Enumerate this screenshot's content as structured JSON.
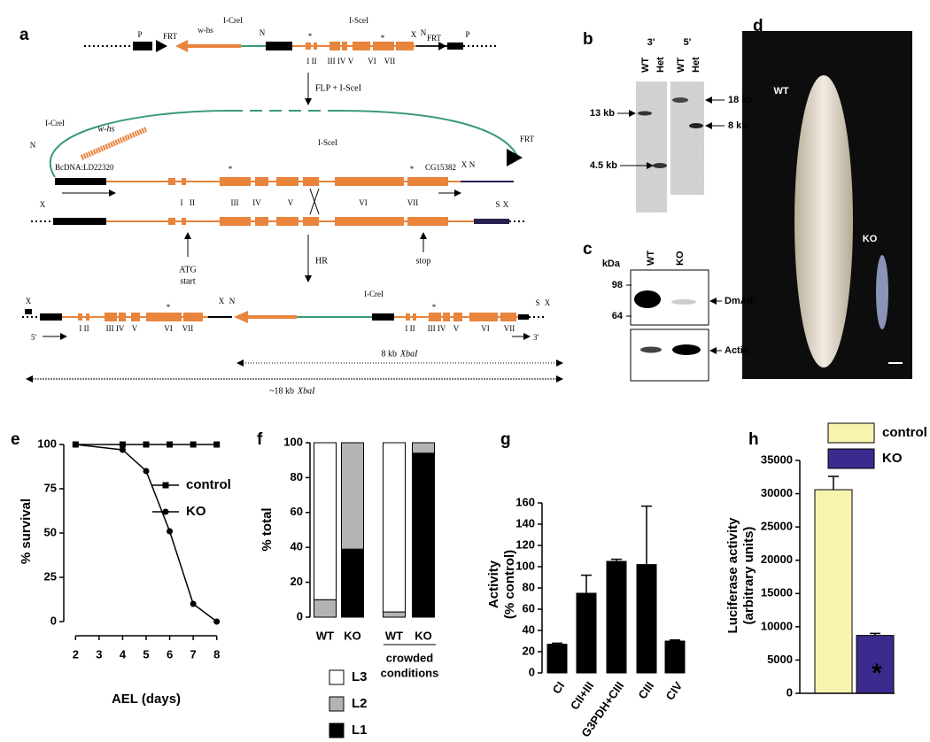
{
  "panel_labels": [
    "a",
    "b",
    "c",
    "d",
    "e",
    "f",
    "g",
    "h"
  ],
  "diagram": {
    "labels": [
      "P",
      "FRT",
      "w-hs",
      "I-CreI",
      "N",
      "I-SceI",
      "*",
      "*",
      "I II",
      "III IV",
      "V",
      "VI",
      "VII",
      "X",
      "N",
      "FRT",
      "P",
      "FLP + I-SceI",
      "I-CreI",
      "w-hs",
      "N",
      "FRT",
      "BcDNA:LD22320",
      "*",
      "I-SceI",
      "*",
      "CG15382",
      "X",
      "N",
      "I",
      "II",
      "III",
      "IV",
      "V",
      "VI",
      "VII",
      "X",
      "S",
      "X",
      "ATG",
      "start",
      "HR",
      "stop",
      "X",
      "5'",
      "I II",
      "III IV",
      "V",
      "VI",
      "VII",
      "*",
      "X",
      "N",
      "I-CreI",
      "I II",
      "III IV",
      "V",
      "VI",
      "VII",
      "*",
      "S",
      "X",
      "3'",
      "8 kb",
      "XbaI",
      "~18 kb",
      "XbaI"
    ]
  },
  "blot_b": {
    "labels": [
      "3'",
      "5'",
      "WT",
      "Het",
      "WT",
      "Het",
      "13 kb",
      "4.5 kb",
      "18 kb",
      "8 kb"
    ]
  },
  "blot_c": {
    "labels": [
      "kDa",
      "WT",
      "KO",
      "98",
      "64",
      "DmAIF",
      "Actin"
    ]
  },
  "photo_d": {
    "labels": [
      "WT",
      "KO"
    ]
  },
  "chart_data": [
    {
      "type": "line",
      "x": [
        2,
        4,
        5,
        6,
        7,
        8
      ],
      "xlim": [
        1.8,
        8.2
      ],
      "xticks": [
        2,
        3,
        4,
        5,
        6,
        7,
        8
      ],
      "ylim": [
        -5,
        105
      ],
      "yticks": [
        0,
        25,
        50,
        75,
        100
      ],
      "xlabel": "AEL (days)",
      "ylabel": "% survival",
      "legend": "upper right",
      "series": [
        {
          "name": "control",
          "color": "#000000",
          "marker": "square",
          "values": [
            100,
            100,
            100,
            100,
            100,
            100
          ]
        },
        {
          "name": "KO",
          "color": "#000000",
          "marker": "circle",
          "values": [
            100,
            97,
            85,
            51,
            10,
            0
          ]
        }
      ]
    },
    {
      "type": "bar",
      "stacked": true,
      "categories": [
        "WT",
        "KO",
        "WT",
        "KO"
      ],
      "group_label": [
        "crowded",
        "conditions"
      ],
      "ylim": [
        0,
        100
      ],
      "yticks": [
        0,
        20,
        40,
        60,
        80,
        100
      ],
      "ylabel": "% total",
      "series": [
        {
          "name": "L1",
          "color": "#000000",
          "values": [
            0,
            39,
            0,
            94
          ]
        },
        {
          "name": "L2",
          "color": "#b3b3b3",
          "values": [
            10,
            61,
            3,
            6
          ]
        },
        {
          "name": "L3",
          "color": "#ffffff",
          "values": [
            90,
            0,
            97,
            0
          ]
        }
      ]
    },
    {
      "type": "bar",
      "categories": [
        "CI",
        "CII+III",
        "G3PDH+CIII",
        "CIII",
        "CIV"
      ],
      "values": [
        27,
        75,
        105,
        102,
        30
      ],
      "errors": [
        1,
        17,
        2,
        55,
        1
      ],
      "color": "#000000",
      "ylim": [
        0,
        160
      ],
      "yticks": [
        0,
        20,
        40,
        60,
        80,
        100,
        120,
        140,
        160
      ],
      "ylabel": [
        "Activity",
        "(% control)"
      ]
    },
    {
      "type": "bar",
      "ylim": [
        0,
        35000
      ],
      "yticks": [
        0,
        5000,
        10000,
        15000,
        20000,
        25000,
        30000,
        35000
      ],
      "ylabel": [
        "Luciferase activity",
        "(arbitrary units)"
      ],
      "annotation": "*",
      "series": [
        {
          "name": "control",
          "color": "#f8f4b0",
          "values": [
            30600
          ],
          "errors": [
            2000
          ]
        },
        {
          "name": "KO",
          "color": "#3c2a8e",
          "values": [
            8700
          ],
          "errors": [
            300
          ]
        }
      ]
    }
  ]
}
